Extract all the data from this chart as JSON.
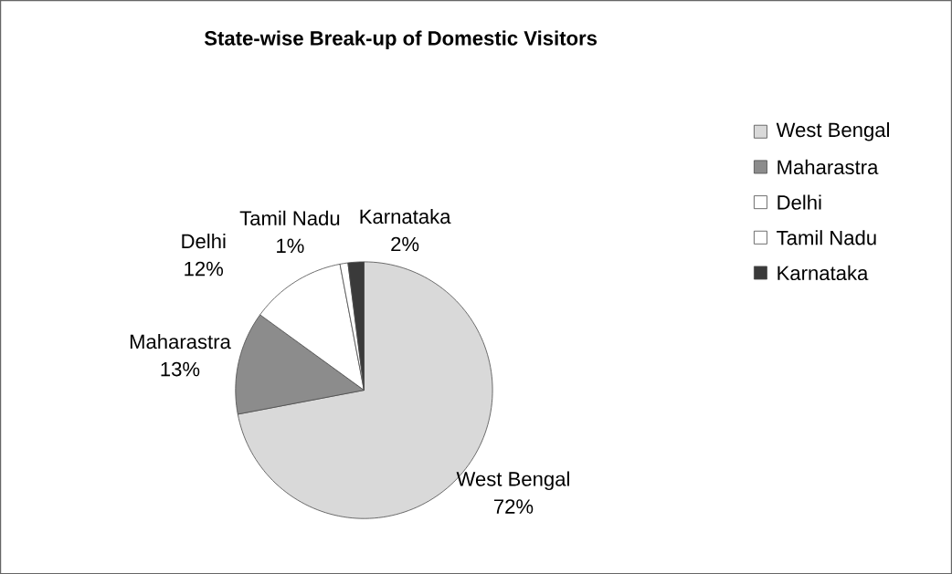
{
  "chart_data": {
    "type": "pie",
    "title": "State-wise Break-up of Domestic Visitors",
    "categories": [
      "West Bengal",
      "Maharastra",
      "Delhi",
      "Tamil Nadu",
      "Karnataka"
    ],
    "values": [
      72,
      13,
      12,
      1,
      2
    ],
    "value_labels": [
      "72%",
      "13%",
      "12%",
      "1%",
      "2%"
    ],
    "colors": [
      "#d9d9d9",
      "#8c8c8c",
      "#ffffff",
      "#ffffff",
      "#3a3a3a"
    ],
    "legend": "right"
  }
}
